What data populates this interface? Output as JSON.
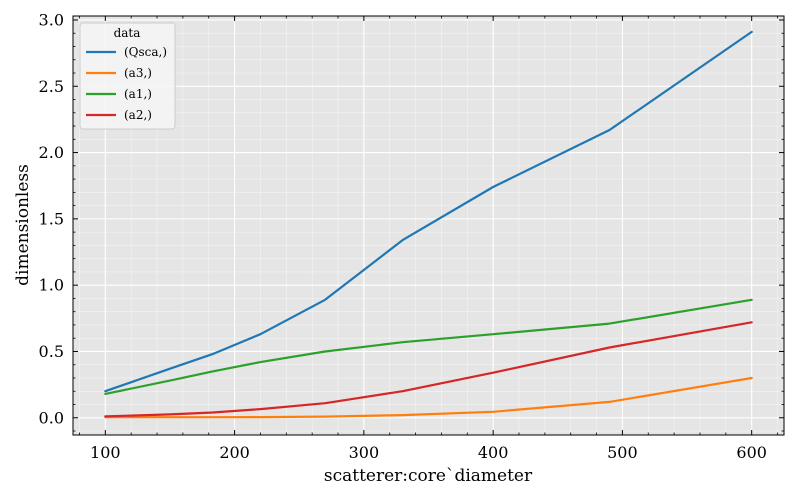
{
  "chart_data": {
    "type": "line",
    "title": "",
    "xlabel": "scatterer:core`diameter",
    "ylabel": "dimensionless",
    "xlim": [
      75,
      625
    ],
    "ylim": [
      -0.13,
      3.03
    ],
    "xticks": [
      100,
      200,
      300,
      400,
      500,
      600
    ],
    "yticks": [
      0.0,
      0.5,
      1.0,
      1.5,
      2.0,
      2.5,
      3.0
    ],
    "ytick_labels": [
      "0.0",
      "0.5",
      "1.0",
      "1.5",
      "2.0",
      "2.5",
      "3.0"
    ],
    "grid": true,
    "legend_title": "data",
    "legend_position": "top-left",
    "x": [
      100,
      150,
      183,
      220,
      270,
      330,
      400,
      490,
      600
    ],
    "series": [
      {
        "name": "(Qsca,)",
        "color": "#1f77b4",
        "values": [
          0.2,
          0.37,
          0.48,
          0.63,
          0.89,
          1.34,
          1.74,
          2.17,
          2.91
        ]
      },
      {
        "name": "(a3,)",
        "color": "#ff7f0e",
        "values": [
          0.005,
          0.004,
          0.004,
          0.005,
          0.009,
          0.02,
          0.045,
          0.12,
          0.3
        ]
      },
      {
        "name": "(a1,)",
        "color": "#2ca02c",
        "values": [
          0.18,
          0.28,
          0.35,
          0.42,
          0.5,
          0.57,
          0.63,
          0.71,
          0.89
        ]
      },
      {
        "name": "(a2,)",
        "color": "#d62728",
        "values": [
          0.01,
          0.025,
          0.04,
          0.065,
          0.11,
          0.2,
          0.34,
          0.53,
          0.72
        ]
      }
    ]
  }
}
